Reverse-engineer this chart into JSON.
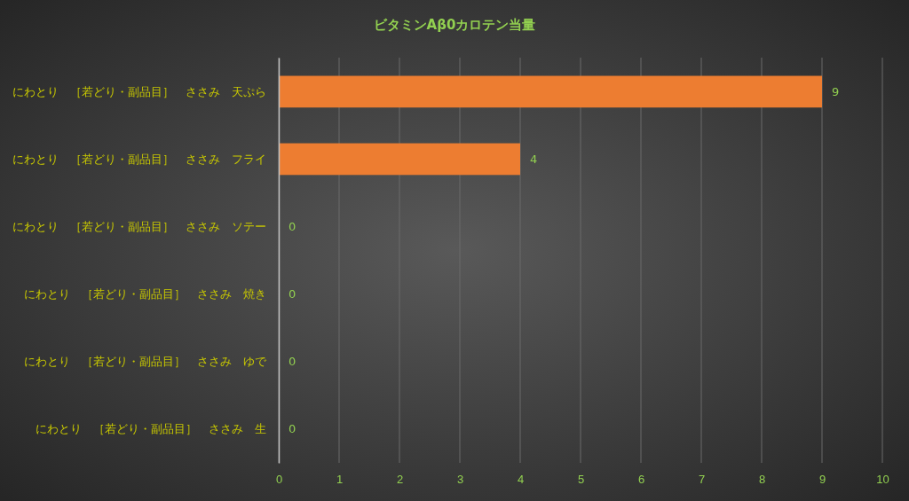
{
  "chart_data": {
    "type": "bar",
    "orientation": "horizontal",
    "title": "ビタミンAβ0カロテン当量",
    "categories": [
      "にわとり　［若どり・副品目］　ささみ　天ぷら",
      "にわとり　［若どり・副品目］　ささみ　フライ",
      "にわとり　［若どり・副品目］　ささみ　ソテー",
      "にわとり　［若どり・副品目］　ささみ　焼き",
      "にわとり　［若どり・副品目］　ささみ　ゆで",
      "にわとり　［若どり・副品目］　ささみ　生"
    ],
    "values": [
      9,
      4,
      0,
      0,
      0,
      0
    ],
    "color": "#ed7d31",
    "xlim": [
      0,
      10
    ],
    "xticks": [
      0,
      1,
      2,
      3,
      4,
      5,
      6,
      7,
      8,
      9,
      10
    ],
    "grid": "x",
    "data_labels": true
  }
}
